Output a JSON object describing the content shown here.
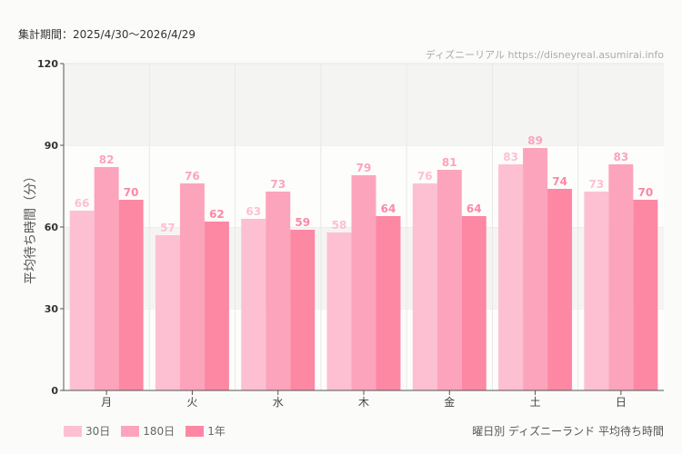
{
  "header": {
    "period": "集計期間：2025/4/30〜2026/4/29",
    "credit": "ディズニーリアル https://disneyreal.asumirai.info"
  },
  "caption": "曜日別 ディズニーランド 平均待ち時間",
  "chart_data": {
    "type": "bar",
    "ylabel": "平均待ち時間（分）",
    "ylim": [
      0,
      120
    ],
    "yticks": [
      0,
      30,
      60,
      90,
      120
    ],
    "categories": [
      "月",
      "火",
      "水",
      "木",
      "金",
      "土",
      "日"
    ],
    "series": [
      {
        "name": "30日",
        "color": "#fdc0d2",
        "values": [
          66,
          57,
          63,
          58,
          76,
          83,
          73
        ]
      },
      {
        "name": "180日",
        "color": "#fca4bb",
        "values": [
          82,
          76,
          73,
          79,
          81,
          89,
          83
        ]
      },
      {
        "name": "1年",
        "color": "#fd88a3",
        "values": [
          70,
          62,
          59,
          64,
          64,
          74,
          70
        ]
      }
    ],
    "legend": "bottom-left",
    "grid": true
  }
}
